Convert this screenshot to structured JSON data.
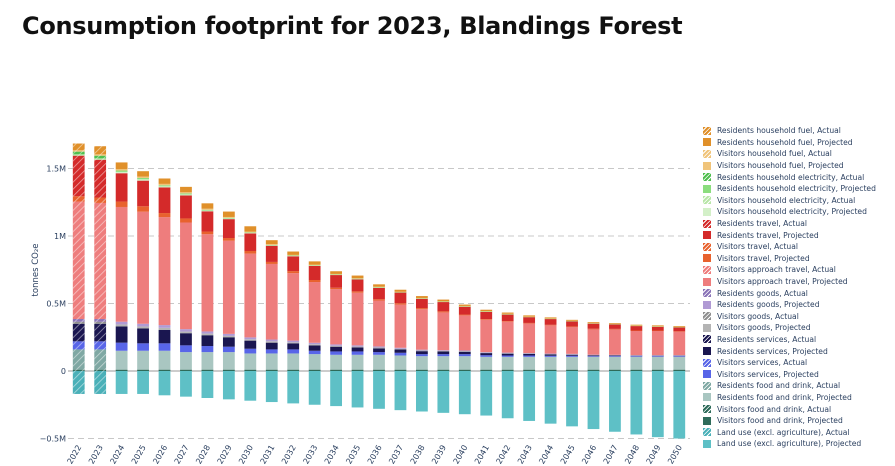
{
  "title": "Consumption footprint for 2023, Blandings Forest",
  "chart_data": {
    "type": "bar",
    "stacked": true,
    "ylabel": "tonnes CO₂e",
    "ylim": [
      -500000,
      1700000
    ],
    "yticks": [
      {
        "value": -500000,
        "label": "−0.5M"
      },
      {
        "value": 0,
        "label": "0"
      },
      {
        "value": 500000,
        "label": "0.5M"
      },
      {
        "value": 1000000,
        "label": "1M"
      },
      {
        "value": 1500000,
        "label": "1.5M"
      }
    ],
    "grid": true,
    "legend_position": "right",
    "categories": [
      "2022",
      "2023",
      "2024",
      "2025",
      "2026",
      "2027",
      "2028",
      "2029",
      "2030",
      "2031",
      "2032",
      "2033",
      "2034",
      "2035",
      "2036",
      "2037",
      "2038",
      "2039",
      "2040",
      "2041",
      "2042",
      "2043",
      "2044",
      "2045",
      "2046",
      "2047",
      "2048",
      "2049",
      "2050"
    ],
    "positive_stack_order": [
      "Visitors food and drink",
      "Residents food and drink",
      "Visitors services",
      "Residents services",
      "Visitors goods",
      "Residents goods",
      "Visitors approach travel",
      "Visitors travel",
      "Residents travel",
      "Visitors household electricity",
      "Residents household electricity",
      "Visitors household fuel",
      "Residents household fuel"
    ],
    "legend": [
      {
        "label": "Residents household fuel, Actual",
        "color": "#e0902a",
        "hatch": true
      },
      {
        "label": "Residents household fuel, Projected",
        "color": "#e0902a",
        "hatch": false
      },
      {
        "label": "Visitors household fuel, Actual",
        "color": "#f0c47a",
        "hatch": true
      },
      {
        "label": "Visitors household fuel, Projected",
        "color": "#f0c47a",
        "hatch": false
      },
      {
        "label": "Residents household electricity, Actual",
        "color": "#4fbf4f",
        "hatch": true
      },
      {
        "label": "Residents household electricity, Projected",
        "color": "#8bdd7e",
        "hatch": false
      },
      {
        "label": "Visitors household electricity, Actual",
        "color": "#b8e6a8",
        "hatch": true
      },
      {
        "label": "Visitors household electricity, Projected",
        "color": "#d3f0c8",
        "hatch": false
      },
      {
        "label": "Residents travel, Actual",
        "color": "#d42a2a",
        "hatch": true
      },
      {
        "label": "Residents travel, Projected",
        "color": "#d42a2a",
        "hatch": false
      },
      {
        "label": "Visitors travel, Actual",
        "color": "#e8622e",
        "hatch": true
      },
      {
        "label": "Visitors travel, Projected",
        "color": "#e8622e",
        "hatch": false
      },
      {
        "label": "Visitors approach travel, Actual",
        "color": "#ee7d7d",
        "hatch": true
      },
      {
        "label": "Visitors approach travel, Projected",
        "color": "#ee7d7d",
        "hatch": false
      },
      {
        "label": "Residents goods, Actual",
        "color": "#8a74b8",
        "hatch": true
      },
      {
        "label": "Residents goods, Projected",
        "color": "#b09ad4",
        "hatch": false
      },
      {
        "label": "Visitors goods, Actual",
        "color": "#8f8f8f",
        "hatch": true
      },
      {
        "label": "Visitors goods, Projected",
        "color": "#b4b4b4",
        "hatch": false
      },
      {
        "label": "Residents services, Actual",
        "color": "#1a1650",
        "hatch": true
      },
      {
        "label": "Residents services, Projected",
        "color": "#1a1650",
        "hatch": false
      },
      {
        "label": "Visitors services, Actual",
        "color": "#5865e8",
        "hatch": true
      },
      {
        "label": "Visitors services, Projected",
        "color": "#5865e8",
        "hatch": false
      },
      {
        "label": "Residents food and drink, Actual",
        "color": "#7fa8a3",
        "hatch": true
      },
      {
        "label": "Residents food and drink, Projected",
        "color": "#a9c6c1",
        "hatch": false
      },
      {
        "label": "Visitors food and drink, Actual",
        "color": "#2e6b5a",
        "hatch": true
      },
      {
        "label": "Visitors food and drink, Projected",
        "color": "#2e6b5a",
        "hatch": false
      },
      {
        "label": "Land use (excl. agriculture), Actual",
        "color": "#4ab0b8",
        "hatch": true
      },
      {
        "label": "Land use (excl. agriculture), Projected",
        "color": "#5ec0c6",
        "hatch": false
      }
    ],
    "series": [
      {
        "category": "Visitors food and drink",
        "values": [
          10000,
          10000,
          10000,
          10000,
          10000,
          10000,
          10000,
          10000,
          10000,
          10000,
          10000,
          10000,
          10000,
          10000,
          10000,
          10000,
          10000,
          10000,
          10000,
          10000,
          10000,
          10000,
          10000,
          10000,
          10000,
          10000,
          10000,
          10000,
          10000
        ]
      },
      {
        "category": "Residents food and drink",
        "values": [
          150000,
          150000,
          140000,
          140000,
          140000,
          130000,
          130000,
          130000,
          120000,
          120000,
          120000,
          115000,
          110000,
          110000,
          110000,
          105000,
          100000,
          100000,
          100000,
          95000,
          95000,
          95000,
          95000,
          95000,
          95000,
          95000,
          95000,
          95000,
          95000
        ]
      },
      {
        "category": "Visitors services",
        "values": [
          60000,
          60000,
          60000,
          55000,
          55000,
          50000,
          45000,
          40000,
          35000,
          30000,
          30000,
          25000,
          25000,
          25000,
          20000,
          20000,
          15000,
          15000,
          15000,
          12000,
          10000,
          10000,
          8000,
          8000,
          5000,
          5000,
          5000,
          5000,
          5000
        ]
      },
      {
        "category": "Residents services",
        "values": [
          130000,
          130000,
          120000,
          110000,
          100000,
          90000,
          80000,
          70000,
          60000,
          50000,
          45000,
          40000,
          35000,
          30000,
          28000,
          25000,
          22000,
          20000,
          18000,
          16000,
          14000,
          12000,
          10000,
          8000,
          6000,
          5000,
          4000,
          4000,
          4000
        ]
      },
      {
        "category": "Visitors goods",
        "values": [
          15000,
          15000,
          15000,
          15000,
          15000,
          12000,
          12000,
          10000,
          10000,
          10000,
          8000,
          8000,
          7000,
          6000,
          6000,
          5000,
          5000,
          4000,
          4000,
          3000,
          3000,
          3000,
          3000,
          3000,
          3000,
          3000,
          2000,
          2000,
          2000
        ]
      },
      {
        "category": "Residents goods",
        "values": [
          20000,
          20000,
          20000,
          20000,
          20000,
          18000,
          16000,
          15000,
          14000,
          13000,
          12000,
          11000,
          10000,
          9000,
          8000,
          7000,
          6000,
          5000,
          5000,
          4000,
          4000,
          3000,
          3000,
          3000,
          2000,
          2000,
          2000,
          2000,
          2000
        ]
      },
      {
        "category": "Visitors approach travel",
        "values": [
          870000,
          860000,
          850000,
          830000,
          800000,
          790000,
          720000,
          690000,
          620000,
          560000,
          500000,
          450000,
          410000,
          390000,
          340000,
          320000,
          300000,
          280000,
          260000,
          240000,
          230000,
          220000,
          210000,
          200000,
          190000,
          190000,
          180000,
          180000,
          175000
        ]
      },
      {
        "category": "Visitors travel",
        "values": [
          40000,
          40000,
          40000,
          40000,
          30000,
          30000,
          20000,
          20000,
          20000,
          15000,
          15000,
          15000,
          10000,
          10000,
          10000,
          10000,
          8000,
          8000,
          6000,
          5000,
          4000,
          3000,
          3000,
          3000,
          2000,
          2000,
          2000,
          2000,
          2000
        ]
      },
      {
        "category": "Residents travel",
        "values": [
          300000,
          280000,
          210000,
          190000,
          190000,
          170000,
          150000,
          140000,
          130000,
          120000,
          110000,
          105000,
          95000,
          90000,
          85000,
          80000,
          70000,
          70000,
          60000,
          55000,
          50000,
          45000,
          45000,
          40000,
          40000,
          35000,
          35000,
          30000,
          30000
        ]
      },
      {
        "category": "Visitors household electricity",
        "values": [
          10000,
          10000,
          10000,
          10000,
          8000,
          8000,
          6000,
          5000,
          4000,
          3000,
          3000,
          3000,
          2000,
          2000,
          2000,
          2000,
          2000,
          2000,
          1000,
          1000,
          1000,
          1000,
          1000,
          1000,
          1000,
          1000,
          1000,
          1000,
          1000
        ]
      },
      {
        "category": "Residents household electricity",
        "values": [
          20000,
          20000,
          10000,
          10000,
          8000,
          8000,
          5000,
          5000,
          4000,
          3000,
          3000,
          2000,
          2000,
          2000,
          2000,
          1000,
          1000,
          1000,
          1000,
          1000,
          1000,
          1000,
          1000,
          1000,
          1000,
          1000,
          1000,
          1000,
          1000
        ]
      },
      {
        "category": "Visitors household fuel",
        "values": [
          10000,
          10000,
          10000,
          10000,
          10000,
          8000,
          8000,
          6000,
          5000,
          5000,
          4000,
          3000,
          3000,
          3000,
          3000,
          2000,
          2000,
          2000,
          2000,
          2000,
          2000,
          1000,
          1000,
          1000,
          1000,
          1000,
          1000,
          1000,
          1000
        ]
      },
      {
        "category": "Residents household fuel",
        "values": [
          50000,
          60000,
          50000,
          40000,
          40000,
          40000,
          40000,
          40000,
          40000,
          30000,
          25000,
          25000,
          20000,
          20000,
          18000,
          15000,
          14000,
          12000,
          10000,
          10000,
          9000,
          8000,
          7000,
          6000,
          6000,
          5000,
          5000,
          5000,
          5000
        ]
      },
      {
        "category": "Land use (excl. agriculture)",
        "values": [
          -170000,
          -170000,
          -170000,
          -170000,
          -180000,
          -190000,
          -200000,
          -210000,
          -220000,
          -230000,
          -240000,
          -250000,
          -260000,
          -270000,
          -280000,
          -290000,
          -300000,
          -310000,
          -320000,
          -330000,
          -350000,
          -370000,
          -390000,
          -410000,
          -430000,
          -450000,
          -470000,
          -490000,
          -500000
        ]
      }
    ],
    "actual_categories": [
      "2022",
      "2023"
    ]
  }
}
